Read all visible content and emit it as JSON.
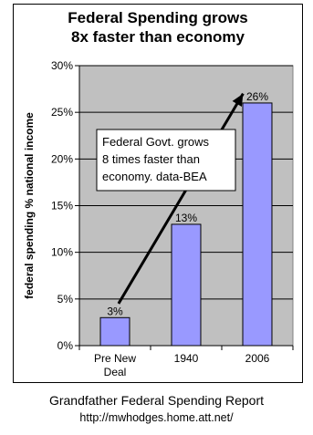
{
  "chart_data": {
    "type": "bar",
    "title": [
      "Federal Spending grows",
      "8x faster than economy"
    ],
    "ylabel": "federal spending % national income",
    "xlabel": "",
    "categories": [
      [
        "Pre New",
        "Deal"
      ],
      [
        "1940"
      ],
      [
        "2006"
      ]
    ],
    "values": [
      3,
      13,
      26
    ],
    "data_labels": [
      "3%",
      "13%",
      "26%"
    ],
    "ylim": [
      0,
      30
    ],
    "yticks": [
      0,
      5,
      10,
      15,
      20,
      25,
      30
    ],
    "ytick_labels": [
      "0%",
      "5%",
      "10%",
      "15%",
      "20%",
      "25%",
      "30%"
    ],
    "grid": true,
    "colors": {
      "bar": "#9999ff",
      "plot_bg": "#c0c0c0",
      "arrow": "#000000"
    },
    "annotation": {
      "lines": [
        "Federal Govt. grows",
        "8 times faster than",
        "economy. data-BEA"
      ],
      "arrow": {
        "from": [
          0.05,
          4.5
        ],
        "to": [
          1.8,
          27
        ]
      }
    }
  },
  "footer": {
    "source": "Grandfather Federal Spending Report",
    "url": "http://mwhodges.home.att.net/"
  }
}
